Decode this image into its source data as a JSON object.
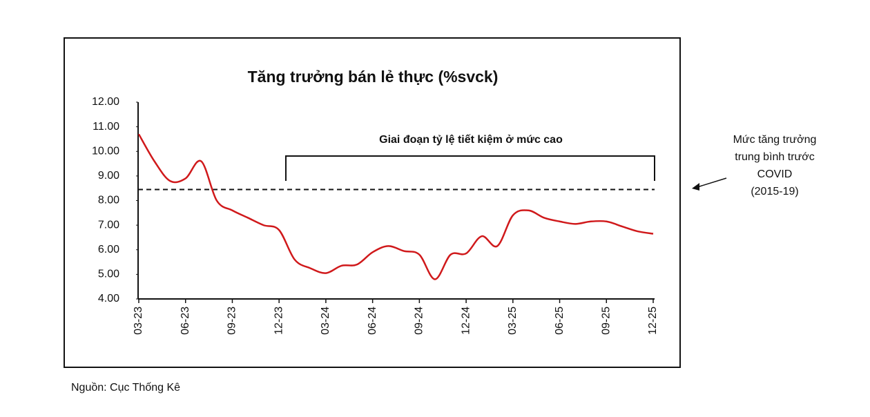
{
  "chart_data": {
    "type": "line",
    "title": "Tăng trưởng bán lẻ thực (%svck)",
    "categories": [
      "03-23",
      null,
      null,
      "06-23",
      null,
      null,
      "09-23",
      null,
      null,
      "12-23",
      null,
      null,
      "03-24",
      null,
      null,
      "06-24",
      null,
      null,
      "09-24",
      null,
      null,
      "12-24",
      null,
      null,
      "03-25",
      null,
      null,
      "06-25",
      null,
      null,
      "09-25",
      null,
      null,
      "12-25"
    ],
    "values": [
      10.7,
      9.6,
      8.8,
      8.9,
      9.6,
      8.0,
      7.6,
      7.3,
      7.0,
      6.8,
      5.6,
      5.25,
      5.05,
      5.35,
      5.4,
      5.9,
      6.15,
      5.95,
      5.8,
      4.8,
      5.8,
      5.85,
      6.55,
      6.15,
      7.4,
      7.6,
      7.3,
      7.15,
      7.05,
      7.15,
      7.15,
      6.95,
      6.75,
      6.65
    ],
    "color": "#d0191b",
    "ylim": [
      4,
      12
    ],
    "yticks": [
      {
        "value": 4,
        "label": "4.00"
      },
      {
        "value": 5,
        "label": "5.00"
      },
      {
        "value": 6,
        "label": "6.00"
      },
      {
        "value": 7,
        "label": "7.00"
      },
      {
        "value": 8,
        "label": "8.00"
      },
      {
        "value": 9,
        "label": "9.00"
      },
      {
        "value": 10,
        "label": "10.00"
      },
      {
        "value": 11,
        "label": "11.00"
      },
      {
        "value": 12,
        "label": "12.00"
      }
    ],
    "grid": false,
    "reference_value": 8.45,
    "period_annotation": "Giai đoạn tỷ lệ tiết kiệm ở mức cao",
    "reference_note": [
      "Mức tăng trưởng",
      "trung bình trước",
      "COVID",
      "(2015-19)"
    ],
    "source": "Nguồn: Cục Thống Kê"
  }
}
